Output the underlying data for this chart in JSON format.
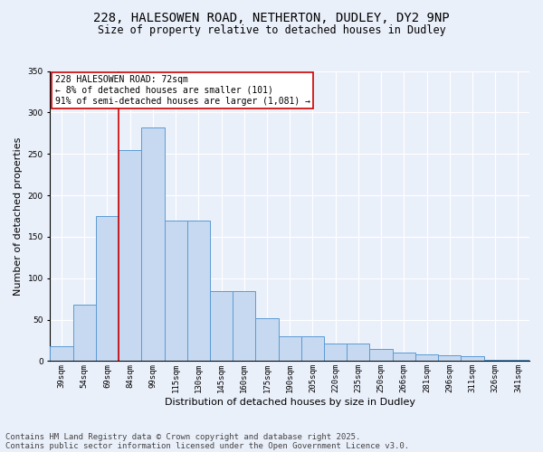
{
  "title_line1": "228, HALESOWEN ROAD, NETHERTON, DUDLEY, DY2 9NP",
  "title_line2": "Size of property relative to detached houses in Dudley",
  "xlabel": "Distribution of detached houses by size in Dudley",
  "ylabel": "Number of detached properties",
  "categories": [
    "39sqm",
    "54sqm",
    "69sqm",
    "84sqm",
    "99sqm",
    "115sqm",
    "130sqm",
    "145sqm",
    "160sqm",
    "175sqm",
    "190sqm",
    "205sqm",
    "220sqm",
    "235sqm",
    "250sqm",
    "266sqm",
    "281sqm",
    "296sqm",
    "311sqm",
    "326sqm",
    "341sqm"
  ],
  "values": [
    18,
    68,
    175,
    255,
    282,
    170,
    170,
    84,
    84,
    52,
    30,
    30,
    21,
    21,
    15,
    10,
    8,
    7,
    6,
    2,
    2
  ],
  "bar_color": "#c6d9f0",
  "bar_edge_color": "#5b9bd5",
  "annotation_text": "228 HALESOWEN ROAD: 72sqm\n← 8% of detached houses are smaller (101)\n91% of semi-detached houses are larger (1,081) →",
  "annotation_box_color": "#ffffff",
  "annotation_box_edge_color": "#cc0000",
  "vline_color": "#cc0000",
  "vline_x_index": 2.5,
  "footer_line1": "Contains HM Land Registry data © Crown copyright and database right 2025.",
  "footer_line2": "Contains public sector information licensed under the Open Government Licence v3.0.",
  "ylim": [
    0,
    350
  ],
  "yticks": [
    0,
    50,
    100,
    150,
    200,
    250,
    300,
    350
  ],
  "bg_color": "#eaf0fa",
  "plot_bg_color": "#eaf0fa",
  "grid_color": "#ffffff",
  "title_fontsize": 10,
  "subtitle_fontsize": 8.5,
  "axis_label_fontsize": 8,
  "tick_fontsize": 6.5,
  "annotation_fontsize": 7,
  "footer_fontsize": 6.5
}
